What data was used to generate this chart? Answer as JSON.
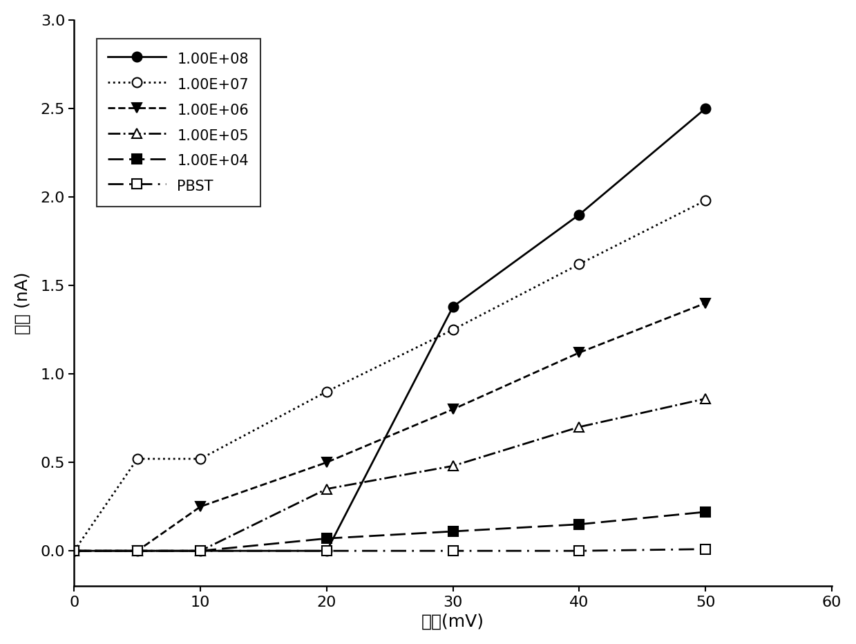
{
  "x": [
    0,
    5,
    10,
    20,
    30,
    40,
    50
  ],
  "series": [
    {
      "label": "1.00E+08",
      "y": [
        0.0,
        0.0,
        0.0,
        0.0,
        1.38,
        1.9,
        2.5
      ],
      "linestyle": "-",
      "marker": "o",
      "markerfacecolor": "black",
      "markeredgecolor": "black"
    },
    {
      "label": "1.00E+07",
      "y": [
        0.0,
        0.52,
        0.52,
        0.9,
        1.25,
        1.62,
        1.98
      ],
      "linestyle": ":",
      "marker": "o",
      "markerfacecolor": "white",
      "markeredgecolor": "black"
    },
    {
      "label": "1.00E+06",
      "y": [
        0.0,
        0.0,
        0.25,
        0.5,
        0.8,
        1.12,
        1.4
      ],
      "linestyle": "--",
      "marker": "v",
      "markerfacecolor": "black",
      "markeredgecolor": "black"
    },
    {
      "label": "1.00E+05",
      "y": [
        0.0,
        0.0,
        0.0,
        0.35,
        0.48,
        0.7,
        0.86
      ],
      "linestyle": "-.",
      "marker": "^",
      "markerfacecolor": "white",
      "markeredgecolor": "black"
    },
    {
      "label": "1.00E+04",
      "y": [
        0.0,
        0.0,
        0.0,
        0.07,
        0.11,
        0.15,
        0.22
      ],
      "linestyle": "--",
      "marker": "s",
      "markerfacecolor": "black",
      "markeredgecolor": "black"
    },
    {
      "label": "PBST",
      "y": [
        0.0,
        0.0,
        0.0,
        0.0,
        0.0,
        0.0,
        0.01
      ],
      "linestyle": "-.",
      "marker": "s",
      "markerfacecolor": "white",
      "markeredgecolor": "black"
    }
  ],
  "xlabel": "电压(mV)",
  "ylabel": "电流 (nA)",
  "xlim": [
    0,
    60
  ],
  "ylim": [
    -0.2,
    3.0
  ],
  "xticks": [
    0,
    10,
    20,
    30,
    40,
    50,
    60
  ],
  "yticks": [
    0.0,
    0.5,
    1.0,
    1.5,
    2.0,
    2.5,
    3.0
  ],
  "linewidth": 2.0,
  "markersize": 10,
  "font_size_labels": 18,
  "font_size_ticks": 16,
  "font_size_legend": 15
}
